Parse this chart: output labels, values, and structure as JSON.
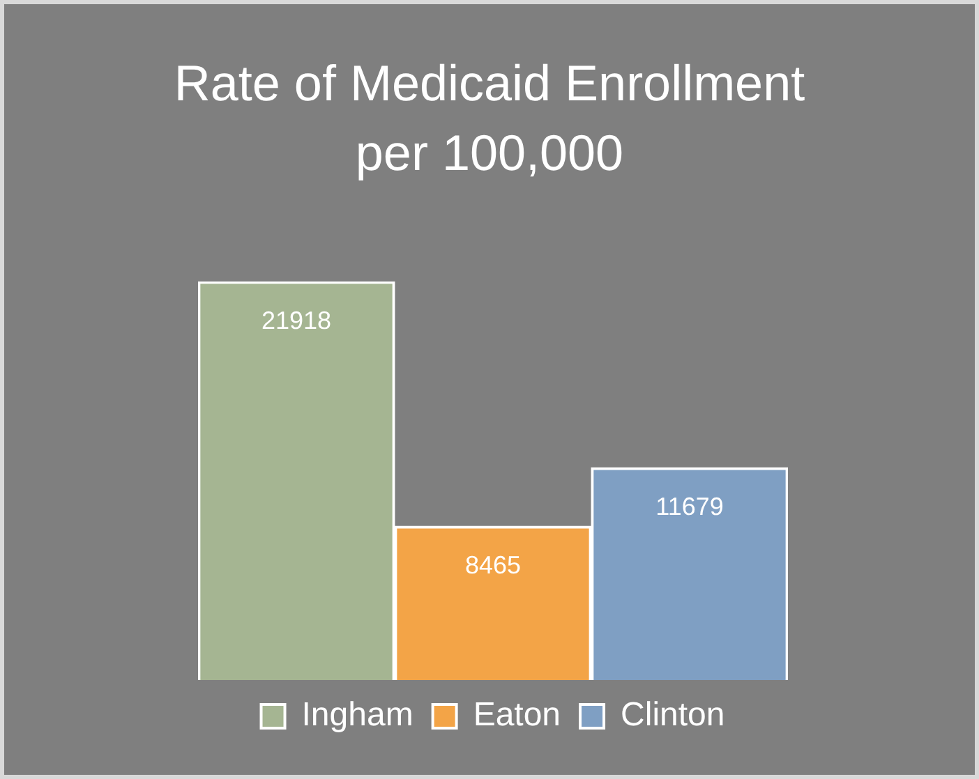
{
  "chart_data": {
    "type": "bar",
    "title": "Rate of Medicaid Enrollment per 100,000",
    "categories": [
      null
    ],
    "series": [
      {
        "name": "Ingham",
        "color": "#a5b592",
        "values": [
          21918
        ]
      },
      {
        "name": "Eaton",
        "color": "#f3a447",
        "values": [
          8465
        ]
      },
      {
        "name": "Clinton",
        "color": "#7f9fc3",
        "values": [
          11679
        ]
      }
    ],
    "data_labels": true,
    "legend": "bottom"
  }
}
